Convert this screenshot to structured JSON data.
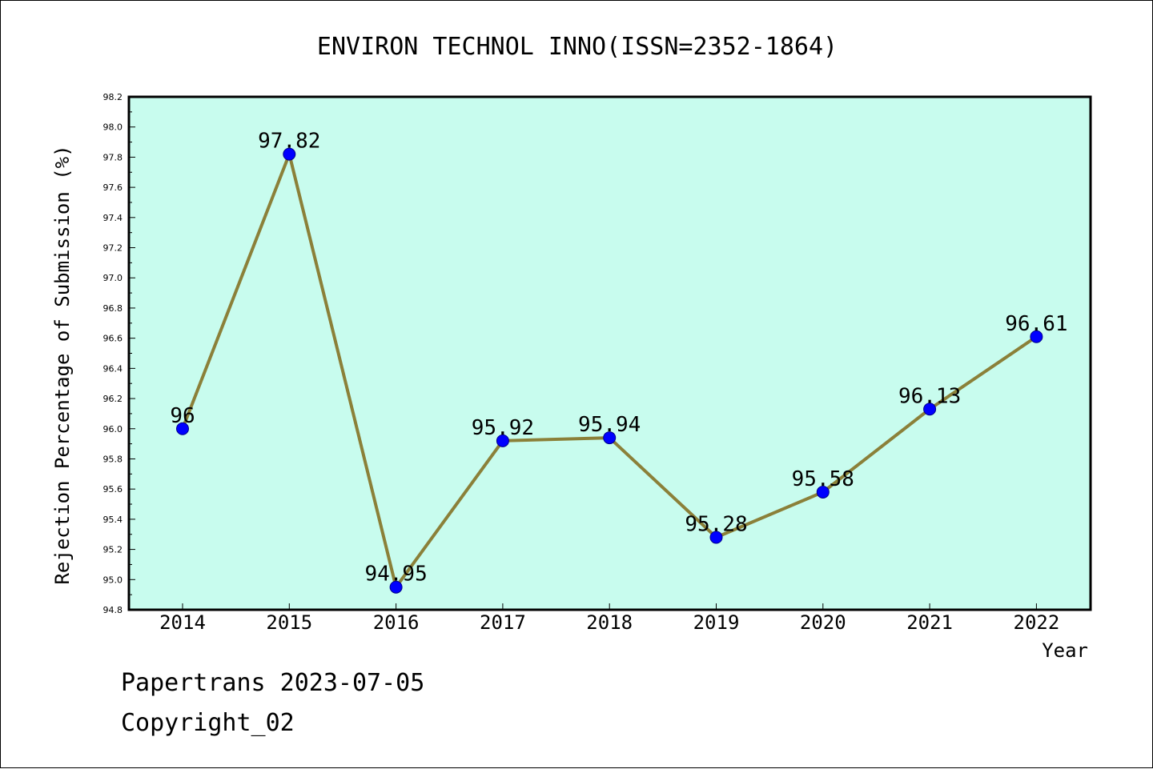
{
  "chart_data": {
    "type": "line",
    "title": "ENVIRON TECHNOL INNO(ISSN=2352-1864)",
    "xlabel": "Year",
    "ylabel": "Rejection Percentage of Submission (%)",
    "x": [
      "2014",
      "2015",
      "2016",
      "2017",
      "2018",
      "2019",
      "2020",
      "2021",
      "2022"
    ],
    "series": [
      {
        "values": [
          96,
          97.82,
          94.95,
          95.92,
          95.94,
          95.28,
          95.58,
          96.13,
          96.61
        ],
        "labels": [
          "96",
          "97.82",
          "94.95",
          "95.92",
          "95.94",
          "95.28",
          "95.58",
          "96.13",
          "96.61"
        ]
      }
    ],
    "ylim": [
      94.8,
      98.2
    ],
    "yticks": [
      "94.8",
      "95.0",
      "95.2",
      "95.4",
      "95.6",
      "95.8",
      "96.0",
      "96.2",
      "96.4",
      "96.6",
      "96.8",
      "97.0",
      "97.2",
      "97.4",
      "97.6",
      "97.8",
      "98.0",
      "98.2"
    ],
    "grid": false,
    "colors": {
      "plot_background": "#c8fcee",
      "line": "#8b8039",
      "marker": "#0000ff"
    }
  },
  "footer": {
    "line1": "Papertrans 2023-07-05",
    "line2": "Copyright_02"
  }
}
